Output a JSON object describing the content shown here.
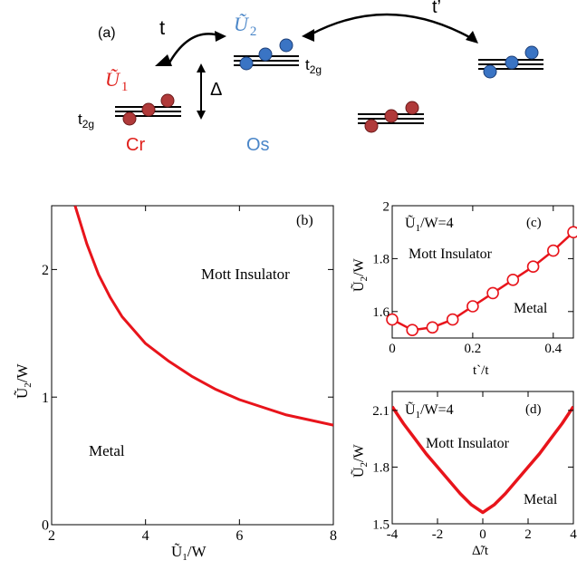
{
  "schematic": {
    "panel_label": "(a)",
    "hop_t": "t",
    "hop_t_prime": "t’",
    "gap_label": "Δ",
    "u1_label": "Ũ",
    "u1_sub": "1",
    "u2_label": "Ũ",
    "u2_sub": "2",
    "t2g_base": "t",
    "t2g_sub": "2g",
    "cr_label": "Cr",
    "os_label": "Os",
    "colors": {
      "cr": "#b03a3a",
      "os": "#3a74c4",
      "red_text": "#e0201b",
      "blue_text": "#4a86c8"
    }
  },
  "chart_data": [
    {
      "type": "line",
      "panel_label": "(b)",
      "xlabel_main": "Ũ",
      "xlabel_sub": "1",
      "xlabel_rest": "/W",
      "ylabel_main": "Ũ",
      "ylabel_sub": "2",
      "ylabel_rest": "/W",
      "xlim": [
        2,
        8
      ],
      "ylim": [
        0,
        2.5
      ],
      "xticks": [
        "2",
        "4",
        "6",
        "8"
      ],
      "yticks": [
        "0",
        "1",
        "2"
      ],
      "region_labels": [
        "Mott Insulator",
        "Metal"
      ],
      "series": [
        {
          "x": [
            2.5,
            2.75,
            3,
            3.25,
            3.5,
            4,
            4.5,
            5,
            5.5,
            6,
            6.5,
            7,
            7.5,
            8
          ],
          "y": [
            2.5,
            2.2,
            1.96,
            1.78,
            1.63,
            1.42,
            1.28,
            1.16,
            1.06,
            0.98,
            0.92,
            0.86,
            0.82,
            0.78
          ]
        }
      ]
    },
    {
      "type": "line",
      "panel_label": "(c)",
      "annotation_main": "Ũ",
      "annotation_sub": "1",
      "annotation_rest": "/W=4",
      "xlabel": "t`/t",
      "ylabel_main": "Ũ",
      "ylabel_sub": "2",
      "ylabel_rest": "/W",
      "xlim": [
        0,
        0.45
      ],
      "ylim": [
        1.5,
        2.0
      ],
      "xticks": [
        "0",
        "0.2",
        "0.4"
      ],
      "yticks": [
        "1.6",
        "1.8",
        "2"
      ],
      "region_labels": [
        "Mott Insulator",
        "Metal"
      ],
      "series": [
        {
          "x": [
            0,
            0.05,
            0.1,
            0.15,
            0.2,
            0.25,
            0.3,
            0.35,
            0.4,
            0.45
          ],
          "y": [
            1.57,
            1.53,
            1.54,
            1.57,
            1.62,
            1.67,
            1.72,
            1.77,
            1.83,
            1.9
          ],
          "markers": "open-circle"
        }
      ]
    },
    {
      "type": "line",
      "panel_label": "(d)",
      "annotation_main": "Ũ",
      "annotation_sub": "1",
      "annotation_rest": "/W=4",
      "xlabel": "Δ̃/t",
      "ylabel_main": "Ũ",
      "ylabel_sub": "2",
      "ylabel_rest": "/W",
      "xlim": [
        -4,
        4
      ],
      "ylim": [
        1.5,
        2.2
      ],
      "xticks": [
        "-4",
        "-2",
        "0",
        "2",
        "4"
      ],
      "yticks": [
        "1.5",
        "1.8",
        "2.1"
      ],
      "region_labels": [
        "Mott Insulator",
        "Metal"
      ],
      "series": [
        {
          "x": [
            -4,
            -3.5,
            -3,
            -2.5,
            -2,
            -1.5,
            -1,
            -0.5,
            0,
            0.5,
            1,
            1.5,
            2,
            2.5,
            3,
            3.5,
            4
          ],
          "y": [
            2.12,
            2.03,
            1.95,
            1.87,
            1.8,
            1.73,
            1.66,
            1.6,
            1.56,
            1.6,
            1.66,
            1.73,
            1.8,
            1.87,
            1.95,
            2.03,
            2.12
          ]
        }
      ]
    }
  ]
}
